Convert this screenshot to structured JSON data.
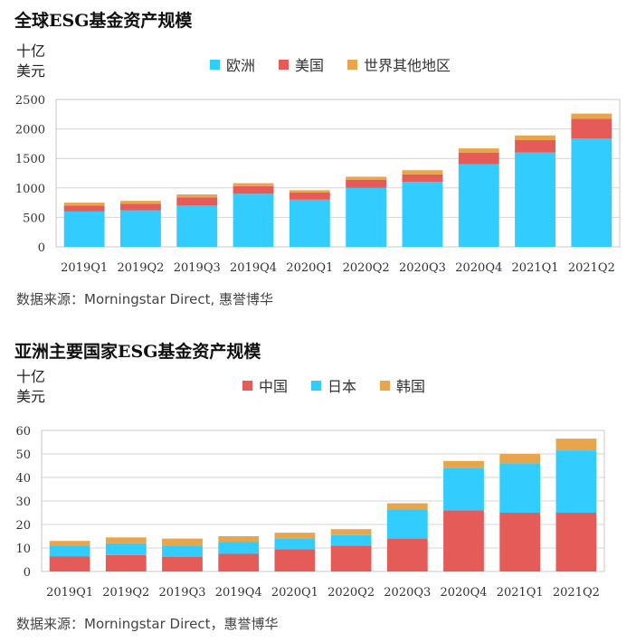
{
  "chart_data": [
    {
      "type": "bar",
      "stacked": true,
      "title": "全球ESG基金资产规模",
      "unit_line1": "十亿",
      "unit_line2": "美元",
      "categories": [
        "2019Q1",
        "2019Q2",
        "2019Q3",
        "2019Q4",
        "2020Q1",
        "2020Q2",
        "2020Q3",
        "2020Q4",
        "2021Q1",
        "2021Q2"
      ],
      "series": [
        {
          "name": "欧洲",
          "color": "#33CCFF",
          "values": [
            600,
            620,
            700,
            900,
            800,
            1000,
            1100,
            1400,
            1600,
            1840
          ]
        },
        {
          "name": "美国",
          "color": "#E55B57",
          "values": [
            100,
            110,
            140,
            130,
            120,
            140,
            130,
            200,
            210,
            330
          ]
        },
        {
          "name": "世界其他地区",
          "color": "#E8A64C",
          "values": [
            50,
            50,
            50,
            50,
            40,
            50,
            70,
            70,
            80,
            90
          ]
        }
      ],
      "yticks": [
        0,
        500,
        1000,
        1500,
        2000,
        2500
      ],
      "ylim": [
        0,
        2500
      ],
      "grid": true,
      "legend_position": "top-center",
      "source": "数据来源：Morningstar Direct, 惠誉博华"
    },
    {
      "type": "bar",
      "stacked": true,
      "title": "亚洲主要国家ESG基金资产规模",
      "unit_line1": "十亿",
      "unit_line2": "美元",
      "categories": [
        "2019Q1",
        "2019Q2",
        "2019Q3",
        "2019Q4",
        "2020Q1",
        "2020Q2",
        "2020Q3",
        "2020Q4",
        "2021Q1",
        "2021Q2"
      ],
      "series": [
        {
          "name": "中国",
          "color": "#E55B57",
          "values": [
            6.5,
            7,
            6.3,
            7.5,
            9.5,
            11,
            14,
            26,
            25,
            25
          ]
        },
        {
          "name": "日本",
          "color": "#33CCFF",
          "values": [
            4.5,
            5,
            4.7,
            5,
            4.5,
            4.5,
            12.5,
            18,
            21,
            26.5
          ]
        },
        {
          "name": "韩国",
          "color": "#E8A64C",
          "values": [
            2,
            2.5,
            3,
            2.5,
            2.5,
            2.5,
            2.5,
            3,
            4,
            5
          ]
        }
      ],
      "yticks": [
        0,
        10,
        20,
        30,
        40,
        50,
        60
      ],
      "ylim": [
        0,
        60
      ],
      "grid": true,
      "legend_position": "top-center",
      "source": "数据来源：Morningstar Direct，惠誉博华"
    }
  ]
}
